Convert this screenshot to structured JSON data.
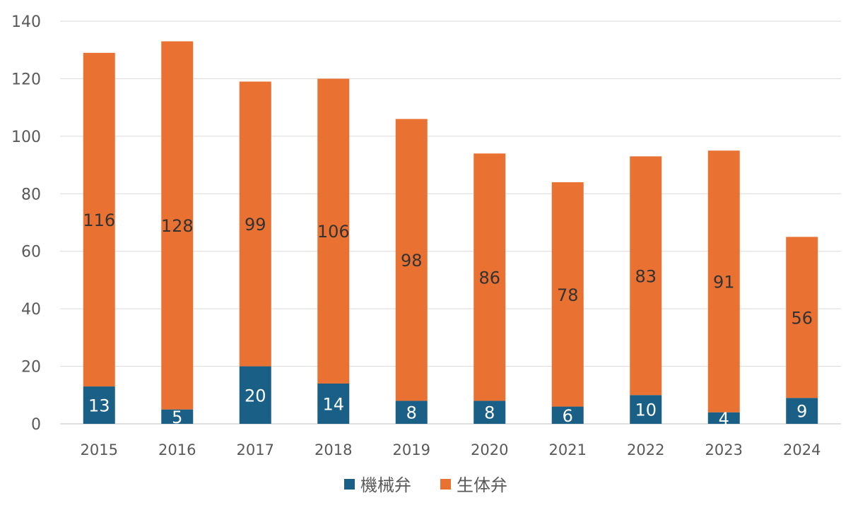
{
  "chart_data": {
    "type": "bar",
    "stacked": true,
    "categories": [
      "2015",
      "2016",
      "2017",
      "2018",
      "2019",
      "2020",
      "2021",
      "2022",
      "2023",
      "2024"
    ],
    "series": [
      {
        "name": "機械弁",
        "color": "#1a5f85",
        "label_color": "#ffffff",
        "values": [
          13,
          5,
          20,
          14,
          8,
          8,
          6,
          10,
          4,
          9
        ]
      },
      {
        "name": "生体弁",
        "color": "#e97132",
        "label_color": "#333333",
        "values": [
          116,
          128,
          99,
          106,
          98,
          86,
          78,
          83,
          91,
          56
        ]
      }
    ],
    "ylim": [
      0,
      140
    ],
    "yticks": [
      "0",
      "20",
      "40",
      "60",
      "80",
      "100",
      "120",
      "140"
    ],
    "grid": true,
    "legend": "bottom",
    "data_labels": true
  }
}
